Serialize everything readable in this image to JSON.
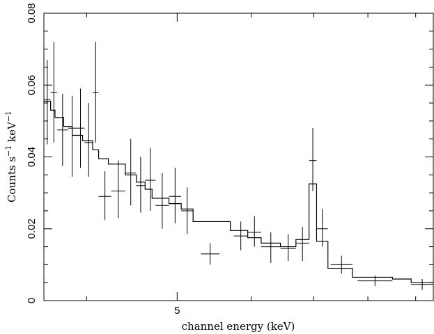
{
  "chart_data": {
    "type": "step",
    "xlabel": "channel energy (keV)",
    "ylabel": {
      "main": "Counts s",
      "exp1": "−1",
      "mid": " keV",
      "exp2": "−1"
    },
    "x_scale": "log",
    "xlim": [
      3.6,
      9.4
    ],
    "ylim": [
      0,
      0.08
    ],
    "x_ticks": [
      {
        "value": 5,
        "label": "5"
      }
    ],
    "x_minor_ticks": [
      4,
      6,
      7,
      8,
      9
    ],
    "y_ticks": [
      {
        "value": 0,
        "label": "0"
      },
      {
        "value": 0.02,
        "label": "0.02"
      },
      {
        "value": 0.04,
        "label": "0.04"
      },
      {
        "value": 0.06,
        "label": "0.06"
      },
      {
        "value": 0.08,
        "label": "0.08"
      }
    ],
    "y_minor_step": 0.005,
    "data_points": [
      {
        "xlo": 3.6,
        "xhi": 3.66,
        "y": 0.056,
        "ylo": 0.0435,
        "yhi": 0.067
      },
      {
        "xlo": 3.66,
        "xhi": 3.72,
        "y": 0.058,
        "ylo": 0.044,
        "yhi": 0.072
      },
      {
        "xlo": 3.72,
        "xhi": 3.82,
        "y": 0.0475,
        "ylo": 0.0375,
        "yhi": 0.0575
      },
      {
        "xlo": 3.82,
        "xhi": 3.9,
        "y": 0.048,
        "ylo": 0.0345,
        "yhi": 0.057
      },
      {
        "xlo": 3.9,
        "xhi": 3.98,
        "y": 0.048,
        "ylo": 0.037,
        "yhi": 0.059
      },
      {
        "xlo": 3.98,
        "xhi": 4.06,
        "y": 0.044,
        "ylo": 0.0345,
        "yhi": 0.055
      },
      {
        "xlo": 4.06,
        "xhi": 4.12,
        "y": 0.058,
        "ylo": 0.044,
        "yhi": 0.072
      },
      {
        "xlo": 4.12,
        "xhi": 4.25,
        "y": 0.029,
        "ylo": 0.0225,
        "yhi": 0.036
      },
      {
        "xlo": 4.25,
        "xhi": 4.4,
        "y": 0.0305,
        "ylo": 0.023,
        "yhi": 0.039
      },
      {
        "xlo": 4.4,
        "xhi": 4.52,
        "y": 0.0355,
        "ylo": 0.0265,
        "yhi": 0.045
      },
      {
        "xlo": 4.52,
        "xhi": 4.62,
        "y": 0.032,
        "ylo": 0.0245,
        "yhi": 0.04
      },
      {
        "xlo": 4.62,
        "xhi": 4.74,
        "y": 0.0335,
        "ylo": 0.025,
        "yhi": 0.0425
      },
      {
        "xlo": 4.74,
        "xhi": 4.9,
        "y": 0.0265,
        "ylo": 0.02,
        "yhi": 0.0355
      },
      {
        "xlo": 4.9,
        "xhi": 5.05,
        "y": 0.029,
        "ylo": 0.0215,
        "yhi": 0.037
      },
      {
        "xlo": 5.05,
        "xhi": 5.2,
        "y": 0.025,
        "ylo": 0.0185,
        "yhi": 0.0315
      },
      {
        "xlo": 5.3,
        "xhi": 5.55,
        "y": 0.013,
        "ylo": 0.01,
        "yhi": 0.016
      },
      {
        "xlo": 5.75,
        "xhi": 5.95,
        "y": 0.018,
        "ylo": 0.014,
        "yhi": 0.022
      },
      {
        "xlo": 5.95,
        "xhi": 6.15,
        "y": 0.019,
        "ylo": 0.015,
        "yhi": 0.0235
      },
      {
        "xlo": 6.15,
        "xhi": 6.45,
        "y": 0.015,
        "ylo": 0.0105,
        "yhi": 0.019
      },
      {
        "xlo": 6.45,
        "xhi": 6.7,
        "y": 0.0145,
        "ylo": 0.011,
        "yhi": 0.0185
      },
      {
        "xlo": 6.7,
        "xhi": 6.92,
        "y": 0.016,
        "ylo": 0.011,
        "yhi": 0.0205
      },
      {
        "xlo": 6.92,
        "xhi": 7.05,
        "y": 0.039,
        "ylo": 0.0305,
        "yhi": 0.048
      },
      {
        "xlo": 7.05,
        "xhi": 7.25,
        "y": 0.02,
        "ylo": 0.015,
        "yhi": 0.0255
      },
      {
        "xlo": 7.3,
        "xhi": 7.7,
        "y": 0.01,
        "ylo": 0.0075,
        "yhi": 0.0125
      },
      {
        "xlo": 7.8,
        "xhi": 8.5,
        "y": 0.0055,
        "ylo": 0.004,
        "yhi": 0.007
      },
      {
        "xlo": 8.9,
        "xhi": 9.4,
        "y": 0.0045,
        "ylo": 0.003,
        "yhi": 0.006
      }
    ],
    "model_steps": [
      {
        "x0": 3.6,
        "x1": 3.66,
        "y": 0.0555
      },
      {
        "x0": 3.66,
        "x1": 3.7,
        "y": 0.053
      },
      {
        "x0": 3.7,
        "x1": 3.78,
        "y": 0.051
      },
      {
        "x0": 3.78,
        "x1": 3.86,
        "y": 0.0485
      },
      {
        "x0": 3.86,
        "x1": 3.96,
        "y": 0.046
      },
      {
        "x0": 3.96,
        "x1": 4.06,
        "y": 0.0445
      },
      {
        "x0": 4.06,
        "x1": 4.12,
        "y": 0.042
      },
      {
        "x0": 4.12,
        "x1": 4.22,
        "y": 0.0395
      },
      {
        "x0": 4.22,
        "x1": 4.4,
        "y": 0.038
      },
      {
        "x0": 4.4,
        "x1": 4.52,
        "y": 0.035
      },
      {
        "x0": 4.52,
        "x1": 4.62,
        "y": 0.033
      },
      {
        "x0": 4.62,
        "x1": 4.7,
        "y": 0.031
      },
      {
        "x0": 4.7,
        "x1": 4.9,
        "y": 0.0285
      },
      {
        "x0": 4.9,
        "x1": 5.05,
        "y": 0.027
      },
      {
        "x0": 5.05,
        "x1": 5.2,
        "y": 0.0255
      },
      {
        "x0": 5.2,
        "x1": 5.7,
        "y": 0.022
      },
      {
        "x0": 5.7,
        "x1": 5.95,
        "y": 0.0195
      },
      {
        "x0": 5.95,
        "x1": 6.15,
        "y": 0.0175
      },
      {
        "x0": 6.15,
        "x1": 6.45,
        "y": 0.016
      },
      {
        "x0": 6.45,
        "x1": 6.7,
        "y": 0.015
      },
      {
        "x0": 6.7,
        "x1": 6.92,
        "y": 0.017
      },
      {
        "x0": 6.92,
        "x1": 7.05,
        "y": 0.0325
      },
      {
        "x0": 7.05,
        "x1": 7.25,
        "y": 0.0165
      },
      {
        "x0": 7.25,
        "x1": 7.7,
        "y": 0.009
      },
      {
        "x0": 7.7,
        "x1": 8.5,
        "y": 0.0065
      },
      {
        "x0": 8.5,
        "x1": 8.9,
        "y": 0.006
      },
      {
        "x0": 8.9,
        "x1": 9.4,
        "y": 0.005
      }
    ]
  }
}
